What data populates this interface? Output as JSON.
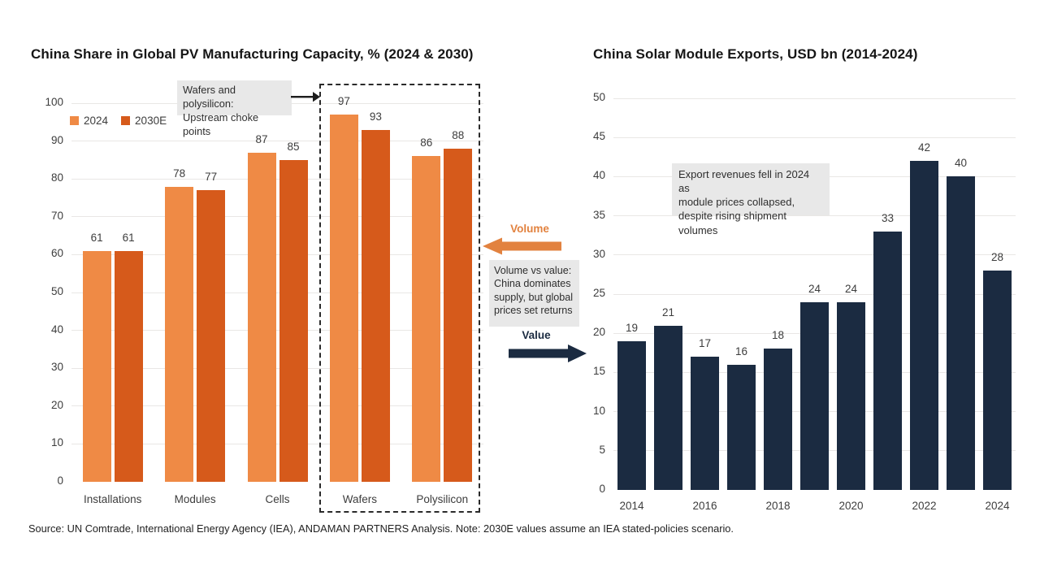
{
  "chart_data": [
    {
      "id": "pv-capacity",
      "type": "bar",
      "title": "China Share in Global PV Manufacturing Capacity, % (2024 & 2030)",
      "categories": [
        "Installations",
        "Modules",
        "Cells",
        "Wafers",
        "Polysilicon"
      ],
      "series": [
        {
          "name": "2024",
          "color": "#EF8A45",
          "values": [
            61,
            78,
            87,
            97,
            86
          ]
        },
        {
          "name": "2030E",
          "color": "#D65A1B",
          "values": [
            61,
            77,
            85,
            93,
            88
          ]
        }
      ],
      "ylim": [
        0,
        100
      ],
      "ytick_step": 10,
      "grid": true,
      "legend_position": "top-left",
      "annotations": {
        "choke_note": "Wafers and polysilicon:\nUpstream choke points",
        "dashed_box_categories": [
          "Wafers",
          "Polysilicon"
        ]
      }
    },
    {
      "id": "module-exports",
      "type": "bar",
      "title": "China Solar Module Exports, USD bn (2014-2024)",
      "categories": [
        "2014",
        "2015",
        "2016",
        "2017",
        "2018",
        "2019",
        "2020",
        "2021",
        "2022",
        "2023",
        "2024"
      ],
      "values": [
        19,
        21,
        17,
        16,
        18,
        24,
        24,
        33,
        42,
        40,
        28
      ],
      "bar_color": "#1B2B41",
      "ylim": [
        0,
        50
      ],
      "ytick_step": 5,
      "grid": true,
      "xtick_labels": [
        "2014",
        "2016",
        "2018",
        "2020",
        "2022",
        "2024"
      ],
      "annotations": {
        "export_note": "Export revenues fell in 2024 as\nmodule prices collapsed,\ndespite rising shipment volumes"
      }
    }
  ],
  "middle": {
    "volume_label": "Volume",
    "value_label": "Value",
    "note": "Volume vs value:\nChina dominates\nsupply, but global\nprices set returns",
    "volume_color": "#E2823F",
    "value_color": "#1B2B41"
  },
  "source": "Source: UN Comtrade, International Energy Agency (IEA), ANDAMAN PARTNERS Analysis. Note: 2030E values assume an IEA stated-policies scenario."
}
